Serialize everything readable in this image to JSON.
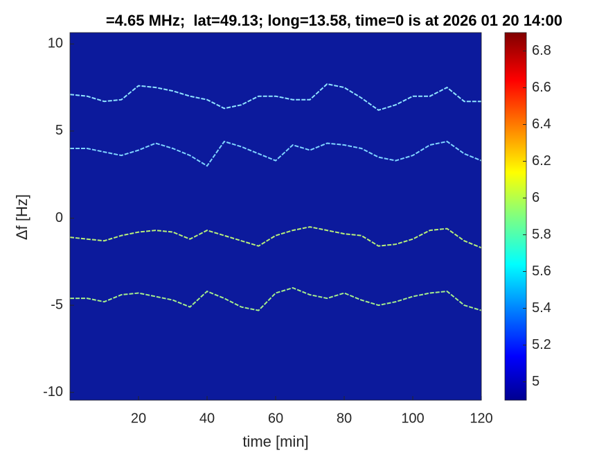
{
  "chart_data": {
    "type": "spectrogram",
    "title": "=4.65 MHz;  lat=49.13; long=13.58, time=0 is at 2026 01 20 14:00",
    "xlabel": "time [min]",
    "ylabel": "Δf [Hz]",
    "xlim": [
      0,
      120
    ],
    "xticks": [
      20,
      40,
      60,
      80,
      100,
      120
    ],
    "ylim": [
      -10.45,
      10.65
    ],
    "yticks": [
      -10,
      -5,
      0,
      5,
      10
    ],
    "background": "#0c1a9c",
    "colormap": "jet",
    "clim": [
      4.9,
      6.9
    ],
    "cticks": [
      5,
      5.2,
      5.4,
      5.6,
      5.8,
      6,
      6.2,
      6.4,
      6.6,
      6.8
    ],
    "x": [
      0,
      5,
      10,
      15,
      20,
      25,
      30,
      35,
      40,
      45,
      50,
      55,
      60,
      65,
      70,
      75,
      80,
      85,
      90,
      95,
      100,
      105,
      110,
      115,
      120
    ],
    "series": [
      {
        "color": "#8fe3ff",
        "values": [
          7.1,
          7.0,
          6.7,
          6.8,
          7.6,
          7.5,
          7.3,
          7.0,
          6.8,
          6.3,
          6.5,
          7.0,
          7.0,
          6.8,
          6.8,
          7.7,
          7.5,
          6.9,
          6.2,
          6.5,
          7.0,
          7.0,
          7.5,
          6.7,
          6.7
        ]
      },
      {
        "color": "#7fd4ff",
        "values": [
          4.0,
          4.0,
          3.8,
          3.6,
          3.9,
          4.3,
          4.0,
          3.6,
          3.0,
          4.4,
          4.1,
          3.7,
          3.3,
          4.2,
          3.9,
          4.3,
          4.2,
          4.0,
          3.5,
          3.3,
          3.6,
          4.2,
          4.4,
          3.7,
          3.3
        ]
      },
      {
        "color": "#b8f07a",
        "values": [
          -1.1,
          -1.2,
          -1.3,
          -1.0,
          -0.8,
          -0.7,
          -0.8,
          -1.2,
          -0.7,
          -1.0,
          -1.3,
          -1.6,
          -1.0,
          -0.7,
          -0.5,
          -0.7,
          -0.9,
          -1.0,
          -1.6,
          -1.5,
          -1.2,
          -0.7,
          -0.6,
          -1.3,
          -1.7
        ]
      },
      {
        "color": "#a6ee8c",
        "values": [
          -4.6,
          -4.6,
          -4.8,
          -4.4,
          -4.3,
          -4.5,
          -4.7,
          -5.1,
          -4.2,
          -4.6,
          -5.1,
          -5.3,
          -4.3,
          -4.0,
          -4.4,
          -4.6,
          -4.3,
          -4.7,
          -5.0,
          -4.8,
          -4.5,
          -4.3,
          -4.2,
          -5.0,
          -5.3
        ]
      }
    ]
  }
}
